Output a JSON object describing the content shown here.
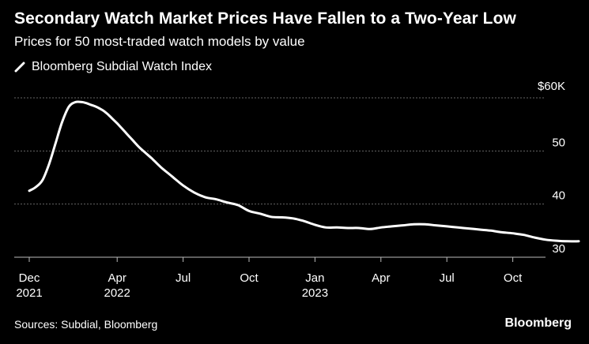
{
  "title": "Secondary Watch Market Prices Have Fallen to a Two-Year Low",
  "subtitle": "Prices for 50 most-traded watch models by value",
  "source": "Sources: Subdial, Bloomberg",
  "brand": "Bloomberg",
  "colors": {
    "background": "#000000",
    "line": "#ffffff",
    "grid": "#666666",
    "text": "#ffffff"
  },
  "chart_data": {
    "type": "line",
    "title": "Secondary Watch Market Prices Have Fallen to a Two-Year Low",
    "subtitle": "Prices for 50 most-traded watch models by value",
    "xlabel": "",
    "ylabel": "",
    "legend": {
      "position": "top-left",
      "entries": [
        "Bloomberg Subdial Watch Index"
      ]
    },
    "grid": true,
    "x_unit": "months since Dec 2021",
    "xlim": [
      0,
      23
    ],
    "ylim": [
      30,
      60
    ],
    "y_ticks": [
      {
        "value": 60,
        "label": "$60K"
      },
      {
        "value": 50,
        "label": "50"
      },
      {
        "value": 40,
        "label": "40"
      },
      {
        "value": 30,
        "label": "30"
      }
    ],
    "x_ticks": [
      {
        "value": 0,
        "label": "Dec",
        "sublabel": "2021"
      },
      {
        "value": 4,
        "label": "Apr",
        "sublabel": "2022"
      },
      {
        "value": 7,
        "label": "Jul",
        "sublabel": ""
      },
      {
        "value": 10,
        "label": "Oct",
        "sublabel": ""
      },
      {
        "value": 13,
        "label": "Jan",
        "sublabel": "2023"
      },
      {
        "value": 16,
        "label": "Apr",
        "sublabel": ""
      },
      {
        "value": 19,
        "label": "Jul",
        "sublabel": ""
      },
      {
        "value": 22,
        "label": "Oct",
        "sublabel": ""
      }
    ],
    "series": [
      {
        "name": "Bloomberg Subdial Watch Index",
        "x": [
          0.0,
          0.3,
          0.6,
          0.9,
          1.2,
          1.5,
          1.8,
          2.1,
          2.4,
          2.6,
          2.8,
          3.0,
          3.2,
          3.4,
          3.6,
          3.8,
          4.0,
          4.2,
          4.4,
          4.6,
          4.8,
          5.0,
          5.3,
          5.6,
          6.0,
          6.5,
          7.0,
          7.5,
          8.0,
          8.5,
          9.0,
          9.5,
          10.0,
          10.5,
          11.0,
          11.5,
          12.0,
          12.5,
          13.0,
          13.5,
          14.0,
          14.5,
          15.0,
          15.5,
          16.0,
          16.5,
          17.0,
          17.5,
          18.0,
          18.5,
          19.0,
          19.5,
          20.0,
          20.5,
          21.0,
          21.5,
          22.0,
          22.5,
          23.0,
          23.5,
          24.0,
          24.5,
          25.0
        ],
        "values": [
          42.5,
          43.2,
          44.5,
          47.5,
          51.5,
          55.5,
          58.3,
          59.2,
          59.2,
          59.0,
          58.7,
          58.4,
          58.0,
          57.5,
          56.8,
          56.0,
          55.2,
          54.3,
          53.4,
          52.5,
          51.6,
          50.7,
          49.6,
          48.5,
          46.9,
          45.2,
          43.5,
          42.2,
          41.3,
          40.9,
          40.3,
          39.8,
          38.7,
          38.2,
          37.6,
          37.5,
          37.3,
          36.8,
          36.1,
          35.6,
          35.6,
          35.5,
          35.5,
          35.3,
          35.6,
          35.8,
          36.0,
          36.2,
          36.2,
          36.0,
          35.8,
          35.6,
          35.4,
          35.2,
          35.0,
          34.7,
          34.5,
          34.2,
          33.7,
          33.3,
          33.1,
          33.0,
          33.0
        ]
      }
    ]
  }
}
